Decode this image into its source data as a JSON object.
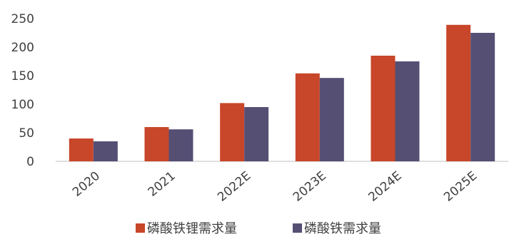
{
  "chart_data": {
    "type": "bar",
    "categories": [
      "2020",
      "2021",
      "2022E",
      "2023E",
      "2024E",
      "2025E"
    ],
    "series": [
      {
        "name": "磷酸铁锂需求量",
        "color": "#c8462a",
        "values": [
          40,
          60,
          102,
          154,
          185,
          239
        ]
      },
      {
        "name": "磷酸铁需求量",
        "color": "#554f74",
        "values": [
          35,
          56,
          95,
          146,
          175,
          225
        ]
      }
    ],
    "yticks": [
      "0",
      "50",
      "100",
      "150",
      "200",
      "250"
    ],
    "ylim": [
      0,
      250
    ],
    "title": "",
    "xlabel": "",
    "ylabel": "",
    "grid": false,
    "legend_position": "bottom"
  }
}
